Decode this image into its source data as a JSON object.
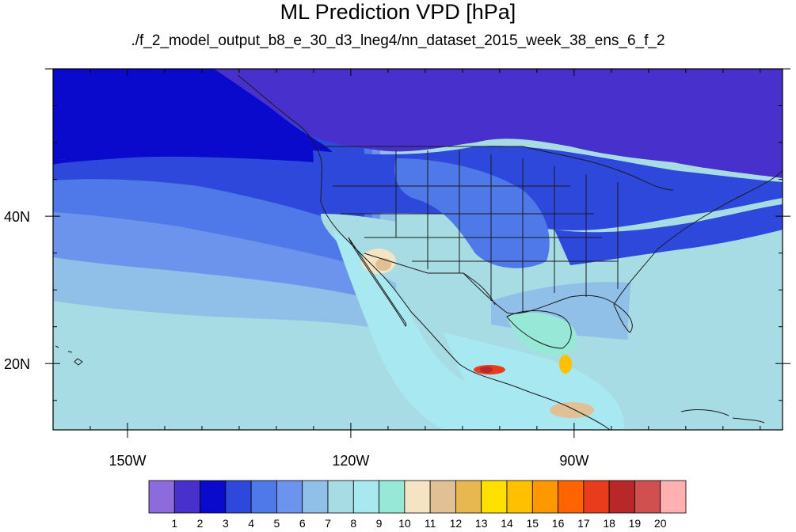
{
  "title": "ML Prediction VPD [hPa]",
  "subtitle": "./f_2_model_output_b8_e_30_d3_lneg4/nn_dataset_2015_week_38_ens_6_f_2",
  "map": {
    "lon_range": [
      -160,
      -62
    ],
    "lat_range": [
      11,
      60
    ],
    "x_ticks": [
      {
        "lon": -150,
        "label": "150W"
      },
      {
        "lon": -120,
        "label": "120W"
      },
      {
        "lon": -90,
        "label": "90W"
      }
    ],
    "y_ticks": [
      {
        "lat": 40,
        "label": "40N"
      },
      {
        "lat": 20,
        "label": "20N"
      }
    ],
    "coastline_color": "#1a1a1a",
    "regions": [
      {
        "name": "background-ocean-south",
        "level": 7
      },
      {
        "name": "canada-north",
        "level": 1
      },
      {
        "name": "pacific-north",
        "level": 2
      },
      {
        "name": "pacific-mid",
        "level": 3
      },
      {
        "name": "pacific-band",
        "level": 4
      },
      {
        "name": "pacific-south-band",
        "level": 5
      },
      {
        "name": "pacific-subtropic",
        "level": 6
      },
      {
        "name": "us-north",
        "level": 3
      },
      {
        "name": "us-east",
        "level": 3
      },
      {
        "name": "us-plains",
        "level": 4
      },
      {
        "name": "gulf",
        "level": 6
      },
      {
        "name": "atlantic-south",
        "level": 7
      },
      {
        "name": "mexico-pacific",
        "level": 8
      },
      {
        "name": "southwest",
        "level": 7
      },
      {
        "name": "desert-hotspot",
        "level": 10
      },
      {
        "name": "desert-core",
        "level": 11
      },
      {
        "name": "central-america",
        "level": 8
      },
      {
        "name": "yucatan",
        "level": 9
      },
      {
        "name": "mexico-hotspot",
        "level": 17
      },
      {
        "name": "mexico-hotspot-core",
        "level": 18
      },
      {
        "name": "central-america-hotspot",
        "level": 11
      },
      {
        "name": "caribbean-hotspot",
        "level": 14
      }
    ]
  },
  "colorbar": {
    "colors": [
      "#8c6cdc",
      "#4830cc",
      "#0a0acc",
      "#2e48dc",
      "#4f78e8",
      "#6d94ec",
      "#90c0e8",
      "#a8dce4",
      "#a8e8f0",
      "#98e8d8",
      "#f4e4c4",
      "#e0c094",
      "#e8b850",
      "#ffe000",
      "#ffc000",
      "#ff9800",
      "#ff6400",
      "#e83c1c",
      "#b82828",
      "#d05050",
      "#ffb0b0"
    ],
    "labels": [
      "1",
      "2",
      "3",
      "4",
      "5",
      "6",
      "7",
      "8",
      "9",
      "10",
      "11",
      "12",
      "13",
      "14",
      "15",
      "16",
      "17",
      "18",
      "19",
      "20"
    ]
  }
}
